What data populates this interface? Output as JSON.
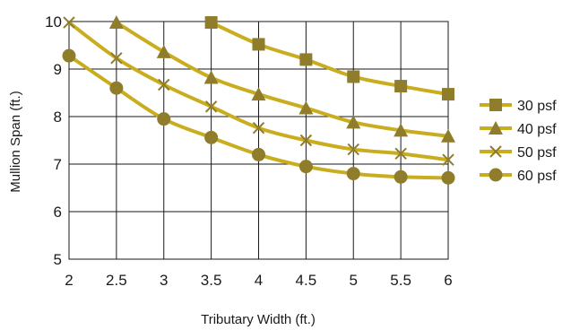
{
  "chart_data": {
    "type": "line",
    "xlabel": "Tributary Width (ft.)",
    "ylabel": "Mullion Span (ft.)",
    "xlim": [
      2,
      6
    ],
    "ylim": [
      5,
      10
    ],
    "x_ticks": [
      "2",
      "2.5",
      "3",
      "3.5",
      "4",
      "4.5",
      "5",
      "5.5",
      "6"
    ],
    "y_ticks": [
      "5",
      "6",
      "7",
      "8",
      "9",
      "10"
    ],
    "grid": true,
    "legend_position": "right",
    "line_color": "#c9ad1f",
    "marker_color": "#8f7d2c",
    "series": [
      {
        "name": "30 psf",
        "marker": "square",
        "x": [
          3.5,
          4,
          4.5,
          5,
          5.5,
          6
        ],
        "y": [
          9.98,
          9.52,
          9.2,
          8.84,
          8.64,
          8.47
        ]
      },
      {
        "name": "40 psf",
        "marker": "triangle",
        "x": [
          2.5,
          3,
          3.5,
          4,
          4.5,
          5,
          5.5,
          6
        ],
        "y": [
          9.98,
          9.36,
          8.82,
          8.47,
          8.18,
          7.88,
          7.71,
          7.59
        ]
      },
      {
        "name": "50 psf",
        "marker": "x",
        "x": [
          2,
          2.5,
          3,
          3.5,
          4,
          4.5,
          5,
          5.5,
          6
        ],
        "y": [
          9.98,
          9.23,
          8.67,
          8.21,
          7.76,
          7.5,
          7.31,
          7.22,
          7.09
        ]
      },
      {
        "name": "60 psf",
        "marker": "circle",
        "x": [
          2,
          2.5,
          3,
          3.5,
          4,
          4.5,
          5,
          5.5,
          6
        ],
        "y": [
          9.28,
          8.6,
          7.95,
          7.56,
          7.2,
          6.95,
          6.8,
          6.73,
          6.71
        ]
      }
    ]
  }
}
